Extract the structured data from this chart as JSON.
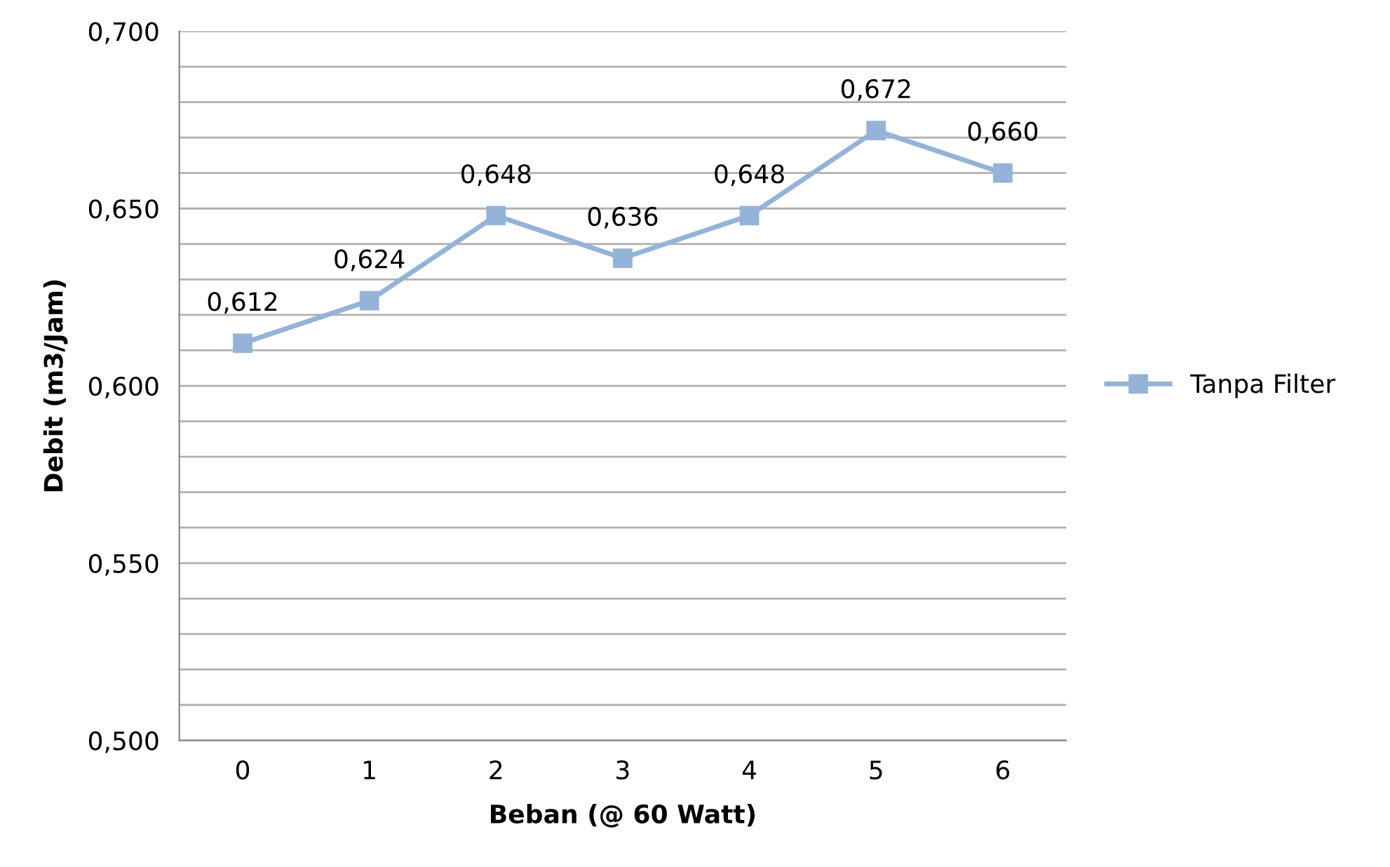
{
  "chart_data": {
    "type": "line",
    "xlabel": "Beban (@ 60 Watt)",
    "ylabel": "Debit (m3/Jam)",
    "categories": [
      "0",
      "1",
      "2",
      "3",
      "4",
      "5",
      "6"
    ],
    "series": [
      {
        "name": "Tanpa Filter",
        "color": "#95b3d7",
        "values": [
          0.612,
          0.624,
          0.648,
          0.636,
          0.648,
          0.672,
          0.66
        ],
        "value_labels": [
          "0,612",
          "0,624",
          "0,648",
          "0,636",
          "0,648",
          "0,672",
          "0,660"
        ]
      }
    ],
    "ylim": [
      0.5,
      0.7
    ],
    "yticks": [
      {
        "value": 0.5,
        "label": "0,500"
      },
      {
        "value": 0.51,
        "label": null
      },
      {
        "value": 0.52,
        "label": null
      },
      {
        "value": 0.53,
        "label": null
      },
      {
        "value": 0.54,
        "label": null
      },
      {
        "value": 0.55,
        "label": "0,550"
      },
      {
        "value": 0.56,
        "label": null
      },
      {
        "value": 0.57,
        "label": null
      },
      {
        "value": 0.58,
        "label": null
      },
      {
        "value": 0.59,
        "label": null
      },
      {
        "value": 0.6,
        "label": "0,600"
      },
      {
        "value": 0.61,
        "label": null
      },
      {
        "value": 0.62,
        "label": null
      },
      {
        "value": 0.63,
        "label": null
      },
      {
        "value": 0.64,
        "label": null
      },
      {
        "value": 0.65,
        "label": "0,650"
      },
      {
        "value": 0.66,
        "label": null
      },
      {
        "value": 0.67,
        "label": null
      },
      {
        "value": 0.68,
        "label": null
      },
      {
        "value": 0.69,
        "label": null
      },
      {
        "value": 0.7,
        "label": "0,700"
      }
    ],
    "grid": "y",
    "legend": "right",
    "marker": "square",
    "line_style": "solid"
  }
}
